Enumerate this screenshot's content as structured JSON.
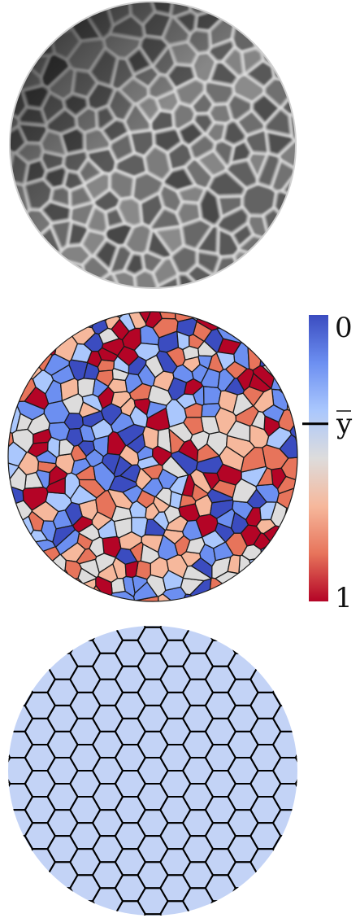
{
  "panels": [
    {
      "id": "photo",
      "description_name": "grayscale-foam-photo"
    },
    {
      "id": "voronoi",
      "description_name": "colored-voronoi-tessellation"
    },
    {
      "id": "hexagonal",
      "description_name": "hexagonal-tessellation",
      "fill": "#c3d3f6"
    }
  ],
  "colorbar": {
    "top_label": "0",
    "mid_label": "y",
    "bottom_label": "1",
    "mid_value": 0.38,
    "colors": [
      "#3b4cc0",
      "#6c8ff1",
      "#aac7fd",
      "#dddcdc",
      "#f6b89c",
      "#e7745b",
      "#b40426"
    ]
  },
  "palette": {
    "edge": "#1a1a1a",
    "hex_edge": "#000000"
  }
}
